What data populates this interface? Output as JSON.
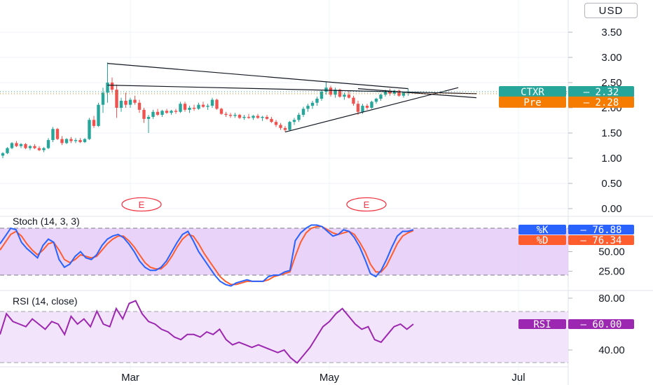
{
  "currency_button": "USD",
  "chart_data": {
    "type": "candlestick",
    "price_axis": {
      "ticks": [
        "3.50",
        "3.00",
        "2.50",
        "2.00",
        "1.50",
        "1.00",
        "0.50",
        "0.00"
      ],
      "ylim": [
        0,
        3.7
      ]
    },
    "x_ticks": [
      "Mar",
      "May",
      "Jul"
    ],
    "earnings_markers": [
      "E",
      "E"
    ],
    "candles": [
      [
        1.05,
        1.12,
        1.0,
        1.1
      ],
      [
        1.1,
        1.22,
        1.08,
        1.2
      ],
      [
        1.2,
        1.32,
        1.18,
        1.3
      ],
      [
        1.3,
        1.34,
        1.22,
        1.24
      ],
      [
        1.24,
        1.3,
        1.2,
        1.28
      ],
      [
        1.28,
        1.3,
        1.18,
        1.2
      ],
      [
        1.2,
        1.26,
        1.16,
        1.24
      ],
      [
        1.24,
        1.28,
        1.18,
        1.2
      ],
      [
        1.2,
        1.24,
        1.14,
        1.16
      ],
      [
        1.16,
        1.22,
        1.12,
        1.2
      ],
      [
        1.2,
        1.4,
        1.18,
        1.36
      ],
      [
        1.36,
        1.62,
        1.32,
        1.58
      ],
      [
        1.58,
        1.6,
        1.36,
        1.38
      ],
      [
        1.38,
        1.44,
        1.26,
        1.3
      ],
      [
        1.3,
        1.4,
        1.28,
        1.38
      ],
      [
        1.38,
        1.42,
        1.3,
        1.34
      ],
      [
        1.34,
        1.4,
        1.3,
        1.36
      ],
      [
        1.36,
        1.4,
        1.3,
        1.32
      ],
      [
        1.32,
        1.4,
        1.3,
        1.38
      ],
      [
        1.38,
        1.8,
        1.36,
        1.76
      ],
      [
        1.76,
        1.84,
        1.6,
        1.64
      ],
      [
        1.64,
        2.1,
        1.62,
        2.06
      ],
      [
        2.06,
        2.4,
        1.9,
        2.3
      ],
      [
        2.3,
        2.9,
        2.1,
        2.5
      ],
      [
        2.5,
        2.6,
        2.3,
        2.36
      ],
      [
        2.36,
        2.46,
        1.8,
        2.0
      ],
      [
        2.0,
        2.2,
        1.92,
        2.14
      ],
      [
        2.14,
        2.3,
        2.0,
        2.06
      ],
      [
        2.06,
        2.2,
        2.0,
        2.16
      ],
      [
        2.16,
        2.24,
        2.06,
        2.1
      ],
      [
        2.1,
        2.16,
        1.9,
        1.96
      ],
      [
        1.96,
        2.0,
        1.7,
        1.78
      ],
      [
        1.78,
        1.86,
        1.5,
        1.82
      ],
      [
        1.82,
        1.96,
        1.78,
        1.92
      ],
      [
        1.92,
        1.98,
        1.84,
        1.86
      ],
      [
        1.86,
        1.96,
        1.82,
        1.94
      ],
      [
        1.94,
        1.98,
        1.88,
        1.9
      ],
      [
        1.9,
        1.96,
        1.86,
        1.94
      ],
      [
        1.94,
        1.98,
        1.88,
        1.92
      ],
      [
        1.92,
        2.12,
        1.9,
        2.08
      ],
      [
        2.08,
        2.12,
        1.92,
        1.96
      ],
      [
        1.96,
        2.04,
        1.9,
        2.0
      ],
      [
        2.0,
        2.06,
        1.94,
        1.98
      ],
      [
        1.98,
        2.1,
        1.96,
        2.06
      ],
      [
        2.06,
        2.12,
        2.0,
        2.02
      ],
      [
        2.02,
        2.08,
        1.96,
        2.04
      ],
      [
        2.04,
        2.2,
        2.0,
        2.16
      ],
      [
        2.16,
        2.18,
        1.96,
        1.98
      ],
      [
        1.98,
        2.0,
        1.86,
        1.88
      ],
      [
        1.88,
        1.92,
        1.82,
        1.86
      ],
      [
        1.86,
        1.9,
        1.8,
        1.84
      ],
      [
        1.84,
        1.9,
        1.8,
        1.86
      ],
      [
        1.86,
        1.88,
        1.78,
        1.8
      ],
      [
        1.8,
        1.86,
        1.76,
        1.82
      ],
      [
        1.82,
        1.88,
        1.78,
        1.8
      ],
      [
        1.8,
        1.86,
        1.76,
        1.84
      ],
      [
        1.84,
        1.88,
        1.78,
        1.8
      ],
      [
        1.8,
        1.84,
        1.74,
        1.82
      ],
      [
        1.82,
        1.86,
        1.76,
        1.78
      ],
      [
        1.78,
        1.82,
        1.7,
        1.72
      ],
      [
        1.72,
        1.76,
        1.62,
        1.66
      ],
      [
        1.66,
        1.7,
        1.56,
        1.6
      ],
      [
        1.6,
        1.64,
        1.52,
        1.56
      ],
      [
        1.56,
        1.74,
        1.54,
        1.72
      ],
      [
        1.72,
        1.8,
        1.66,
        1.76
      ],
      [
        1.76,
        1.9,
        1.72,
        1.86
      ],
      [
        1.86,
        2.02,
        1.82,
        1.98
      ],
      [
        1.98,
        2.08,
        1.92,
        2.04
      ],
      [
        2.04,
        2.14,
        1.98,
        2.1
      ],
      [
        2.1,
        2.22,
        2.04,
        2.18
      ],
      [
        2.18,
        2.36,
        2.14,
        2.32
      ],
      [
        2.32,
        2.52,
        2.26,
        2.4
      ],
      [
        2.4,
        2.44,
        2.22,
        2.26
      ],
      [
        2.26,
        2.4,
        2.2,
        2.36
      ],
      [
        2.36,
        2.38,
        2.2,
        2.22
      ],
      [
        2.22,
        2.3,
        2.16,
        2.26
      ],
      [
        2.26,
        2.34,
        2.18,
        2.2
      ],
      [
        2.2,
        2.24,
        2.04,
        2.08
      ],
      [
        2.08,
        2.14,
        1.86,
        1.92
      ],
      [
        1.92,
        2.08,
        1.88,
        2.04
      ],
      [
        2.04,
        2.08,
        1.96,
        2.0
      ],
      [
        2.0,
        2.14,
        1.98,
        2.12
      ],
      [
        2.12,
        2.2,
        2.08,
        2.18
      ],
      [
        2.18,
        2.28,
        2.14,
        2.26
      ],
      [
        2.26,
        2.36,
        2.22,
        2.32
      ],
      [
        2.32,
        2.38,
        2.24,
        2.28
      ],
      [
        2.28,
        2.36,
        2.24,
        2.34
      ],
      [
        2.34,
        2.36,
        2.22,
        2.24
      ],
      [
        2.24,
        2.32,
        2.2,
        2.3
      ],
      [
        2.3,
        2.38,
        2.24,
        2.32
      ]
    ],
    "trendlines": [
      {
        "from": [
          23,
          2.88
        ],
        "to": [
          89,
          2.38
        ]
      },
      {
        "from": [
          23,
          2.45
        ],
        "to": [
          104,
          2.28
        ]
      },
      {
        "from": [
          62,
          1.52
        ],
        "to": [
          100,
          2.4
        ]
      },
      {
        "from": [
          78,
          2.38
        ],
        "to": [
          104,
          2.2
        ]
      }
    ],
    "last_price": 2.32,
    "premarket_price": 2.28,
    "price_tags": [
      {
        "label": "CTXR",
        "value": "2.32",
        "color": "#26a69a"
      },
      {
        "label": "Pre",
        "value": "2.28",
        "color": "#f57c00"
      }
    ],
    "stoch": {
      "title": "Stoch (14, 3, 3)",
      "ticks": [
        "50.00",
        "25.00"
      ],
      "bands": [
        20,
        80
      ],
      "k_color": "#2962ff",
      "d_color": "#ff5d2e",
      "k": [
        60,
        70,
        80,
        78,
        62,
        54,
        48,
        42,
        58,
        66,
        62,
        40,
        30,
        34,
        44,
        50,
        42,
        40,
        46,
        58,
        66,
        70,
        72,
        68,
        60,
        50,
        38,
        30,
        26,
        26,
        30,
        38,
        50,
        62,
        72,
        76,
        64,
        50,
        40,
        30,
        20,
        12,
        8,
        6,
        10,
        12,
        14,
        12,
        12,
        12,
        18,
        20,
        20,
        24,
        26,
        64,
        74,
        80,
        84,
        84,
        82,
        76,
        70,
        72,
        78,
        76,
        68,
        56,
        40,
        22,
        18,
        26,
        40,
        56,
        70,
        76,
        76,
        78
      ],
      "d": [
        52,
        62,
        72,
        76,
        70,
        60,
        52,
        46,
        52,
        60,
        62,
        52,
        40,
        36,
        40,
        46,
        44,
        42,
        44,
        52,
        60,
        66,
        70,
        70,
        64,
        56,
        46,
        36,
        30,
        28,
        28,
        34,
        44,
        56,
        66,
        72,
        70,
        60,
        48,
        38,
        28,
        18,
        12,
        8,
        8,
        10,
        12,
        12,
        12,
        12,
        14,
        18,
        20,
        22,
        24,
        44,
        62,
        74,
        80,
        82,
        82,
        78,
        74,
        72,
        74,
        76,
        72,
        62,
        50,
        34,
        24,
        24,
        32,
        46,
        60,
        70,
        74,
        77
      ],
      "k_value": "76.88",
      "d_value": "76.34",
      "k_label": "%K",
      "d_label": "%D"
    },
    "rsi": {
      "title": "RSI (14, close)",
      "ticks": [
        "80.00",
        "40.00"
      ],
      "bands": [
        30,
        70
      ],
      "color": "#9c27b0",
      "values": [
        52,
        68,
        62,
        60,
        58,
        64,
        60,
        56,
        62,
        60,
        52,
        66,
        60,
        64,
        58,
        70,
        60,
        58,
        72,
        64,
        76,
        78,
        68,
        62,
        60,
        56,
        54,
        50,
        48,
        52,
        52,
        50,
        54,
        52,
        56,
        48,
        44,
        46,
        44,
        42,
        44,
        42,
        40,
        38,
        40,
        34,
        30,
        36,
        42,
        50,
        58,
        62,
        68,
        72,
        66,
        60,
        56,
        58,
        48,
        46,
        52,
        58,
        60,
        56,
        60
      ],
      "value": "60.00",
      "label": "RSI"
    }
  }
}
